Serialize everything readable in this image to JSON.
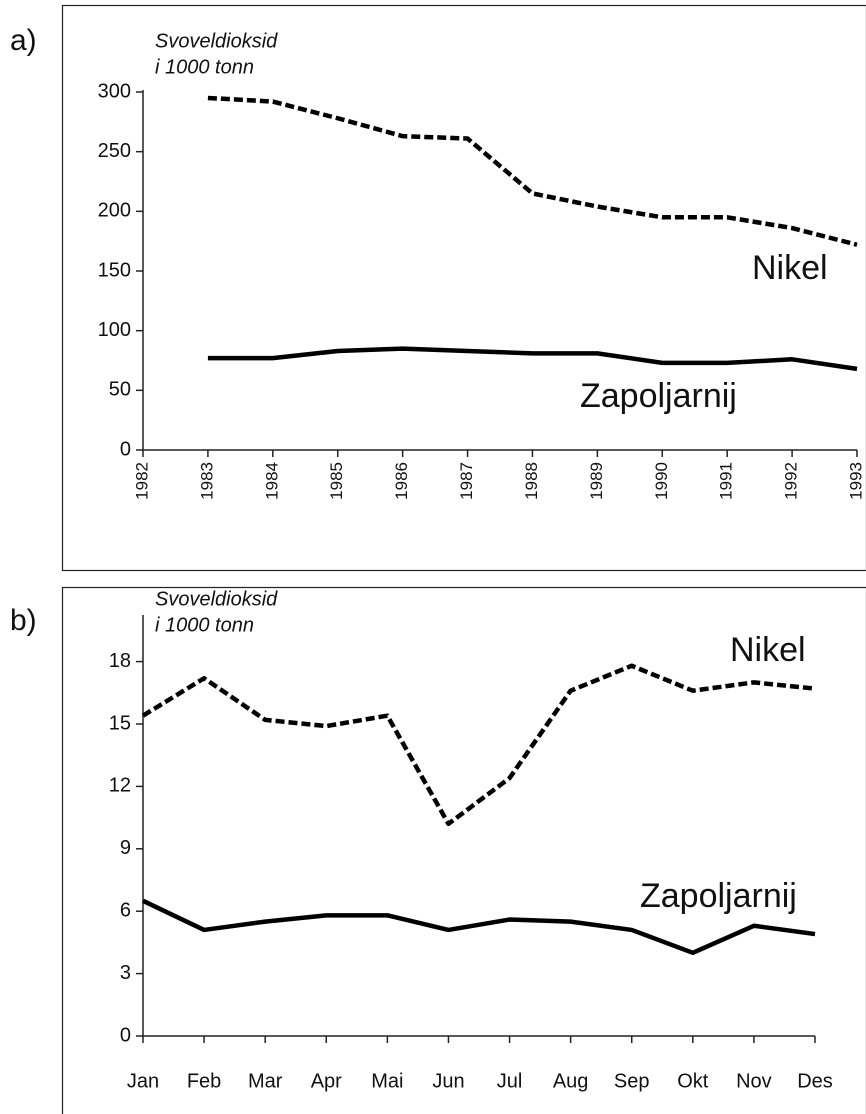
{
  "chart_data": [
    {
      "type": "line",
      "panel_label": "a)",
      "ylabel": [
        "Svoveldioksid",
        "i 1000 tonn"
      ],
      "x": [
        1983,
        1984,
        1985,
        1986,
        1987,
        1988,
        1989,
        1990,
        1991,
        1992,
        1993
      ],
      "xlim": [
        1982,
        1993
      ],
      "xticks": [
        1982,
        1983,
        1984,
        1985,
        1986,
        1987,
        1988,
        1989,
        1990,
        1991,
        1992,
        1993
      ],
      "ylim": [
        0,
        300
      ],
      "yticks": [
        0,
        50,
        100,
        150,
        200,
        250,
        300
      ],
      "series": [
        {
          "name": "Nikel",
          "color": "#000000",
          "style": "dashed",
          "values": [
            295,
            292,
            278,
            263,
            261,
            215,
            204,
            195,
            195,
            186,
            172
          ]
        },
        {
          "name": "Zapoljarnij",
          "color": "#000000",
          "style": "solid",
          "values": [
            77,
            77,
            83,
            85,
            83,
            81,
            81,
            73,
            73,
            76,
            68
          ]
        }
      ]
    },
    {
      "type": "line",
      "panel_label": "b)",
      "ylabel": [
        "Svoveldioksid",
        "i 1000 tonn"
      ],
      "categories": [
        "Jan",
        "Feb",
        "Mar",
        "Apr",
        "Mai",
        "Jun",
        "Jul",
        "Aug",
        "Sep",
        "Okt",
        "Nov",
        "Des"
      ],
      "ylim": [
        0,
        20
      ],
      "yticks": [
        0,
        3,
        6,
        9,
        12,
        15,
        18
      ],
      "series": [
        {
          "name": "Nikel",
          "color": "#000000",
          "style": "dashed",
          "values": [
            15.4,
            17.2,
            15.2,
            14.9,
            15.4,
            10.2,
            12.4,
            16.6,
            17.8,
            16.6,
            17.0,
            16.7
          ]
        },
        {
          "name": "Zapoljarnij",
          "color": "#000000",
          "style": "solid",
          "values": [
            6.5,
            5.1,
            5.5,
            5.8,
            5.8,
            5.1,
            5.6,
            5.5,
            5.1,
            4.0,
            5.3,
            4.9
          ]
        }
      ]
    }
  ]
}
